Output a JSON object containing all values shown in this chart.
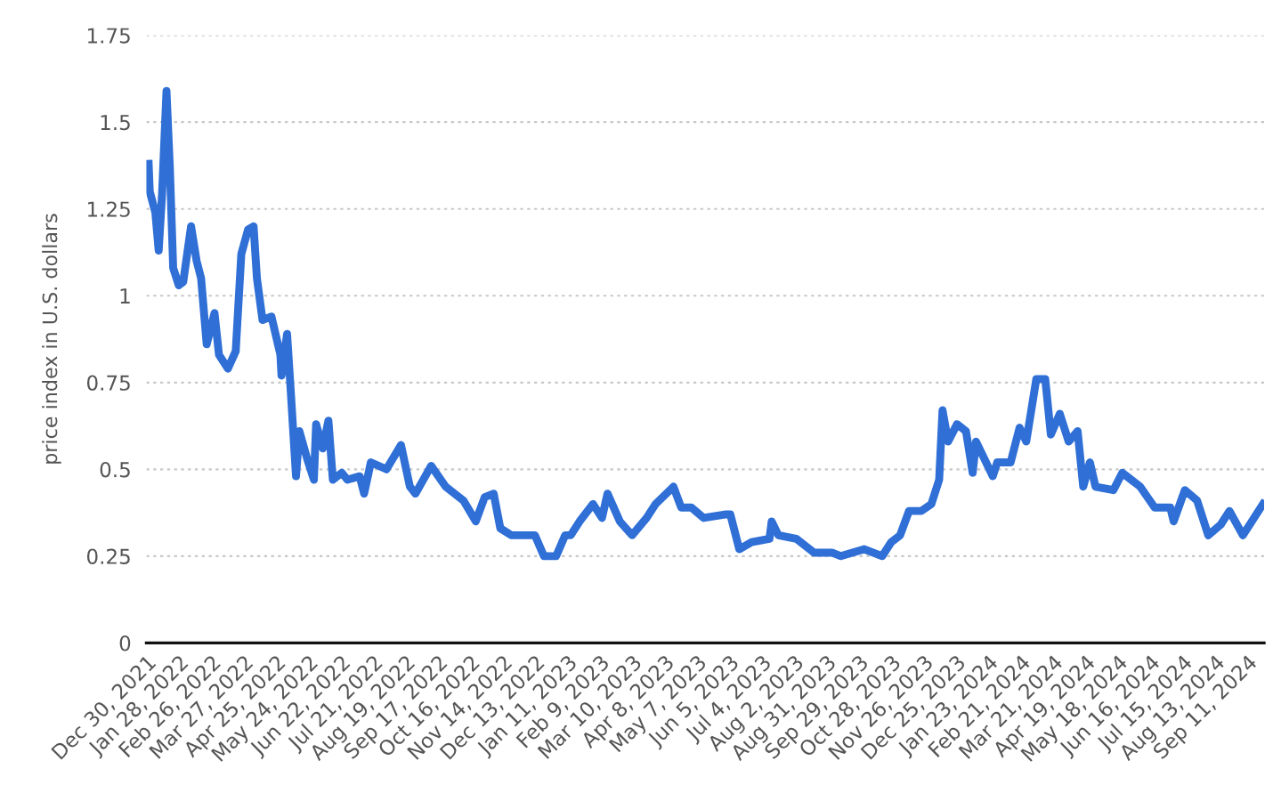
{
  "chart_data": {
    "type": "line",
    "ylabel": "price index in U.S. dollars",
    "x": [
      "2022-01-01",
      "2022-01-02",
      "2022-01-07",
      "2022-01-10",
      "2022-01-13",
      "2022-01-17",
      "2022-01-20",
      "2022-01-23",
      "2022-01-28",
      "2022-02-01",
      "2022-02-08",
      "2022-02-13",
      "2022-02-17",
      "2022-02-22",
      "2022-03-01",
      "2022-03-05",
      "2022-03-13",
      "2022-03-20",
      "2022-03-25",
      "2022-03-31",
      "2022-04-05",
      "2022-04-08",
      "2022-04-13",
      "2022-04-21",
      "2022-04-29",
      "2022-04-30",
      "2022-05-05",
      "2022-05-08",
      "2022-05-13",
      "2022-05-16",
      "2022-05-23",
      "2022-05-29",
      "2022-05-31",
      "2022-06-06",
      "2022-06-11",
      "2022-06-15",
      "2022-06-23",
      "2022-06-28",
      "2022-07-09",
      "2022-07-13",
      "2022-07-19",
      "2022-08-02",
      "2022-08-15",
      "2022-08-23",
      "2022-08-28",
      "2022-09-11",
      "2022-09-24",
      "2022-10-10",
      "2022-10-21",
      "2022-10-29",
      "2022-11-06",
      "2022-11-12",
      "2022-11-22",
      "2022-12-13",
      "2022-12-21",
      "2023-01-01",
      "2023-01-09",
      "2023-01-14",
      "2023-01-22",
      "2023-02-03",
      "2023-02-11",
      "2023-02-16",
      "2023-02-27",
      "2023-03-10",
      "2023-03-23",
      "2023-03-31",
      "2023-04-16",
      "2023-04-23",
      "2023-05-02",
      "2023-05-13",
      "2023-06-01",
      "2023-06-06",
      "2023-06-14",
      "2023-06-25",
      "2023-07-11",
      "2023-07-13",
      "2023-07-19",
      "2023-08-04",
      "2023-08-20",
      "2023-09-05",
      "2023-09-13",
      "2023-10-04",
      "2023-10-20",
      "2023-10-28",
      "2023-11-05",
      "2023-11-13",
      "2023-11-24",
      "2023-12-03",
      "2023-12-10",
      "2023-12-13",
      "2023-12-18",
      "2023-12-26",
      "2024-01-03",
      "2024-01-09",
      "2024-01-12",
      "2024-01-27",
      "2024-01-31",
      "2024-02-12",
      "2024-02-20",
      "2024-02-26",
      "2024-03-06",
      "2024-03-14",
      "2024-03-19",
      "2024-03-27",
      "2024-04-04",
      "2024-04-12",
      "2024-04-17",
      "2024-04-23",
      "2024-04-28",
      "2024-05-14",
      "2024-05-22",
      "2024-06-07",
      "2024-06-20",
      "2024-07-04",
      "2024-07-07",
      "2024-07-17",
      "2024-07-28",
      "2024-08-07",
      "2024-08-18",
      "2024-08-26",
      "2024-09-07",
      "2024-09-15",
      "2024-09-25"
    ],
    "series": [
      {
        "color": "#2f6fd6",
        "values": [
          1.38,
          1.3,
          1.24,
          1.13,
          1.29,
          1.59,
          1.37,
          1.08,
          1.03,
          1.04,
          1.2,
          1.1,
          1.05,
          0.86,
          0.95,
          0.83,
          0.79,
          0.84,
          1.12,
          1.19,
          1.2,
          1.05,
          0.93,
          0.94,
          0.83,
          0.77,
          0.89,
          0.74,
          0.48,
          0.61,
          0.53,
          0.47,
          0.63,
          0.56,
          0.64,
          0.47,
          0.49,
          0.47,
          0.48,
          0.43,
          0.52,
          0.5,
          0.57,
          0.45,
          0.43,
          0.51,
          0.45,
          0.41,
          0.35,
          0.42,
          0.43,
          0.33,
          0.31,
          0.31,
          0.25,
          0.25,
          0.31,
          0.31,
          0.35,
          0.4,
          0.36,
          0.43,
          0.35,
          0.31,
          0.36,
          0.4,
          0.45,
          0.39,
          0.39,
          0.36,
          0.37,
          0.37,
          0.27,
          0.29,
          0.3,
          0.35,
          0.31,
          0.3,
          0.26,
          0.26,
          0.25,
          0.27,
          0.25,
          0.29,
          0.31,
          0.38,
          0.38,
          0.4,
          0.47,
          0.67,
          0.58,
          0.63,
          0.61,
          0.49,
          0.58,
          0.48,
          0.52,
          0.52,
          0.62,
          0.58,
          0.76,
          0.76,
          0.6,
          0.66,
          0.58,
          0.61,
          0.45,
          0.52,
          0.45,
          0.44,
          0.49,
          0.45,
          0.39,
          0.39,
          0.35,
          0.44,
          0.41,
          0.31,
          0.34,
          0.38,
          0.31,
          0.35,
          0.4
        ]
      }
    ],
    "xlim": [
      "2021-12-30",
      "2024-09-26"
    ],
    "xticks": [
      {
        "value": "2021-12-30",
        "label": "Dec 30, 2021"
      },
      {
        "value": "2022-01-28",
        "label": "Jan 28, 2022"
      },
      {
        "value": "2022-02-26",
        "label": "Feb 26, 2022"
      },
      {
        "value": "2022-03-27",
        "label": "Mar 27, 2022"
      },
      {
        "value": "2022-04-25",
        "label": "Apr 25, 2022"
      },
      {
        "value": "2022-05-24",
        "label": "May 24, 2022"
      },
      {
        "value": "2022-06-22",
        "label": "Jun 22, 2022"
      },
      {
        "value": "2022-07-21",
        "label": "Jul 21, 2022"
      },
      {
        "value": "2022-08-19",
        "label": "Aug 19, 2022"
      },
      {
        "value": "2022-09-17",
        "label": "Sep 17, 2022"
      },
      {
        "value": "2022-10-16",
        "label": "Oct 16, 2022"
      },
      {
        "value": "2022-11-14",
        "label": "Nov 14, 2022"
      },
      {
        "value": "2022-12-13",
        "label": "Dec 13, 2022"
      },
      {
        "value": "2023-01-11",
        "label": "Jan 11, 2023"
      },
      {
        "value": "2023-02-09",
        "label": "Feb 9, 2023"
      },
      {
        "value": "2023-03-10",
        "label": "Mar 10, 2023"
      },
      {
        "value": "2023-04-08",
        "label": "Apr 8, 2023"
      },
      {
        "value": "2023-05-07",
        "label": "May 7, 2023"
      },
      {
        "value": "2023-06-05",
        "label": "Jun 5, 2023"
      },
      {
        "value": "2023-07-04",
        "label": "Jul 4, 2023"
      },
      {
        "value": "2023-08-02",
        "label": "Aug 2, 2023"
      },
      {
        "value": "2023-08-31",
        "label": "Aug 31, 2023"
      },
      {
        "value": "2023-09-29",
        "label": "Sep 29, 2023"
      },
      {
        "value": "2023-10-28",
        "label": "Oct 28, 2023"
      },
      {
        "value": "2023-11-26",
        "label": "Nov 26, 2023"
      },
      {
        "value": "2023-12-25",
        "label": "Dec 25, 2023"
      },
      {
        "value": "2024-01-23",
        "label": "Jan 23, 2024"
      },
      {
        "value": "2024-02-21",
        "label": "Feb 21, 2024"
      },
      {
        "value": "2024-03-21",
        "label": "Mar 21, 2024"
      },
      {
        "value": "2024-04-19",
        "label": "Apr 19, 2024"
      },
      {
        "value": "2024-05-18",
        "label": "May 18, 2024"
      },
      {
        "value": "2024-06-16",
        "label": "Jun 16, 2024"
      },
      {
        "value": "2024-07-15",
        "label": "Jul 15, 2024"
      },
      {
        "value": "2024-08-13",
        "label": "Aug 13, 2024"
      },
      {
        "value": "2024-09-11",
        "label": "Sep 11, 2024"
      }
    ],
    "ylim": [
      0,
      1.75
    ],
    "yticks": [
      0,
      {
        "value": 0.25,
        "label": "0.25"
      },
      {
        "value": 0.5,
        "label": "0.5"
      },
      {
        "value": 0.75,
        "label": "0.75"
      },
      1,
      {
        "value": 1.25,
        "label": "1.25"
      },
      {
        "value": 1.5,
        "label": "1.5"
      },
      {
        "value": 1.75,
        "label": "1.75"
      }
    ],
    "grid": "y",
    "marker": "none",
    "line_style": "solid"
  }
}
